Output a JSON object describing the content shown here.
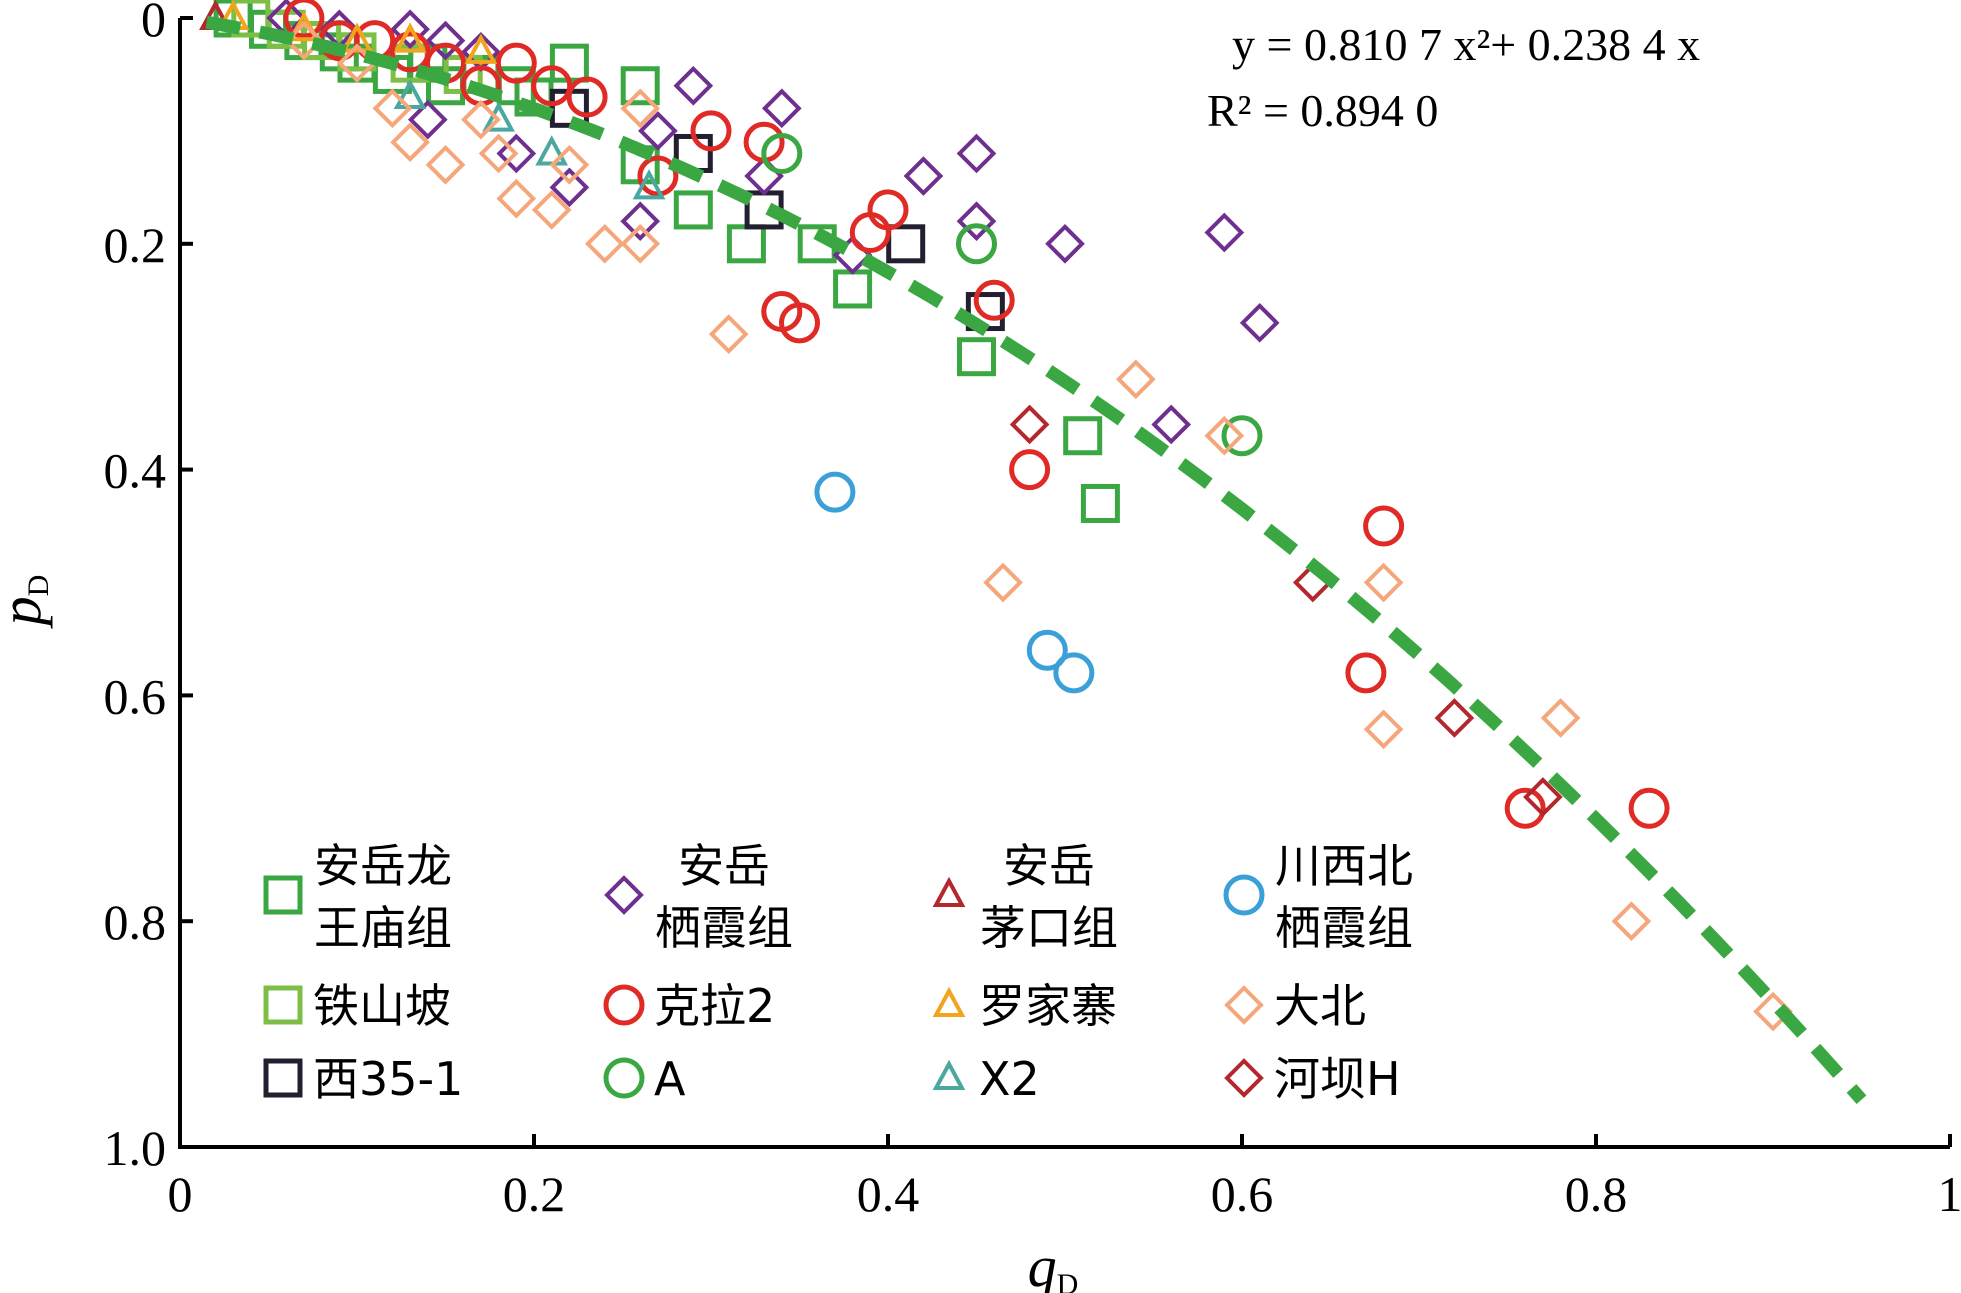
{
  "chart_data": {
    "type": "scatter",
    "xlabel": "q",
    "xlabel_sub": "D",
    "ylabel": "p",
    "ylabel_sub": "D",
    "xlim": [
      0,
      1
    ],
    "ylim": [
      0,
      1.0
    ],
    "y_inverted": true,
    "x_ticks": [
      "0",
      "0.2",
      "0.4",
      "0.6",
      "0.8",
      "1"
    ],
    "x_tick_values": [
      0,
      0.2,
      0.4,
      0.6,
      0.8,
      1
    ],
    "y_ticks": [
      "0",
      "0.2",
      "0.4",
      "0.6",
      "0.8",
      "1.0"
    ],
    "y_tick_values": [
      0,
      0.2,
      0.4,
      0.6,
      0.8,
      1.0
    ],
    "grid": false,
    "legend_position": "bottom-left",
    "annotations": {
      "equation": "y = 0.810 7 x²+ 0.238 4 x",
      "r2": "R² = 0.894 0"
    },
    "fit": {
      "a": 0.8107,
      "b": 0.2384,
      "x_range": [
        0.015,
        0.95
      ],
      "color": "#3aa743",
      "style": "dashed"
    },
    "series": [
      {
        "name": [
          "安岳龙",
          "王庙组"
        ],
        "marker": "square",
        "color": "#3aa743",
        "points": [
          [
            0.03,
            0.0
          ],
          [
            0.05,
            0.01
          ],
          [
            0.07,
            0.02
          ],
          [
            0.09,
            0.03
          ],
          [
            0.1,
            0.04
          ],
          [
            0.12,
            0.05
          ],
          [
            0.14,
            0.04
          ],
          [
            0.15,
            0.06
          ],
          [
            0.17,
            0.05
          ],
          [
            0.19,
            0.06
          ],
          [
            0.2,
            0.07
          ],
          [
            0.22,
            0.04
          ],
          [
            0.26,
            0.06
          ],
          [
            0.26,
            0.13
          ],
          [
            0.29,
            0.17
          ],
          [
            0.32,
            0.2
          ],
          [
            0.36,
            0.2
          ],
          [
            0.38,
            0.24
          ],
          [
            0.45,
            0.3
          ],
          [
            0.51,
            0.37
          ],
          [
            0.52,
            0.43
          ]
        ]
      },
      {
        "name": [
          "铁山坡"
        ],
        "marker": "square",
        "color": "#7dbe45",
        "points": [
          [
            0.04,
            0.0
          ],
          [
            0.06,
            0.01
          ],
          [
            0.08,
            0.02
          ],
          [
            0.1,
            0.03
          ],
          [
            0.13,
            0.04
          ],
          [
            0.16,
            0.05
          ]
        ]
      },
      {
        "name": [
          "西35-1"
        ],
        "marker": "square",
        "color": "#231f30",
        "points": [
          [
            0.22,
            0.08
          ],
          [
            0.29,
            0.12
          ],
          [
            0.33,
            0.17
          ],
          [
            0.41,
            0.2
          ],
          [
            0.455,
            0.26
          ]
        ]
      },
      {
        "name": [
          "安岳",
          "栖霞组"
        ],
        "marker": "diamond",
        "color": "#6f2f8f",
        "points": [
          [
            0.06,
            0.0
          ],
          [
            0.09,
            0.01
          ],
          [
            0.13,
            0.01
          ],
          [
            0.15,
            0.02
          ],
          [
            0.17,
            0.03
          ],
          [
            0.14,
            0.09
          ],
          [
            0.19,
            0.12
          ],
          [
            0.22,
            0.15
          ],
          [
            0.26,
            0.18
          ],
          [
            0.27,
            0.1
          ],
          [
            0.29,
            0.06
          ],
          [
            0.34,
            0.08
          ],
          [
            0.33,
            0.14
          ],
          [
            0.38,
            0.21
          ],
          [
            0.42,
            0.14
          ],
          [
            0.45,
            0.12
          ],
          [
            0.45,
            0.18
          ],
          [
            0.5,
            0.2
          ],
          [
            0.56,
            0.36
          ],
          [
            0.59,
            0.19
          ],
          [
            0.61,
            0.27
          ]
        ]
      },
      {
        "name": [
          "克拉2"
        ],
        "marker": "circle",
        "color": "#e02a26",
        "points": [
          [
            0.07,
            0.0
          ],
          [
            0.09,
            0.02
          ],
          [
            0.11,
            0.02
          ],
          [
            0.13,
            0.03
          ],
          [
            0.15,
            0.04
          ],
          [
            0.17,
            0.06
          ],
          [
            0.19,
            0.04
          ],
          [
            0.21,
            0.06
          ],
          [
            0.23,
            0.07
          ],
          [
            0.27,
            0.14
          ],
          [
            0.3,
            0.1
          ],
          [
            0.33,
            0.11
          ],
          [
            0.34,
            0.26
          ],
          [
            0.35,
            0.27
          ],
          [
            0.39,
            0.19
          ],
          [
            0.4,
            0.17
          ],
          [
            0.46,
            0.25
          ],
          [
            0.48,
            0.4
          ],
          [
            0.67,
            0.58
          ],
          [
            0.68,
            0.45
          ],
          [
            0.76,
            0.7
          ],
          [
            0.83,
            0.7
          ]
        ]
      },
      {
        "name": [
          "A"
        ],
        "marker": "circle",
        "color": "#3aa743",
        "points": [
          [
            0.34,
            0.12
          ],
          [
            0.45,
            0.2
          ],
          [
            0.6,
            0.37
          ]
        ]
      },
      {
        "name": [
          "安岳",
          "茅口组"
        ],
        "marker": "triangle",
        "color": "#b3272d",
        "points": [
          [
            0.02,
            0.0
          ]
        ]
      },
      {
        "name": [
          "罗家寨"
        ],
        "marker": "triangle",
        "color": "#f2a51c",
        "points": [
          [
            0.03,
            0.0
          ],
          [
            0.07,
            0.01
          ],
          [
            0.1,
            0.02
          ],
          [
            0.13,
            0.02
          ],
          [
            0.17,
            0.03
          ]
        ]
      },
      {
        "name": [
          "X2"
        ],
        "marker": "triangle",
        "color": "#4aa8a0",
        "points": [
          [
            0.13,
            0.07
          ],
          [
            0.18,
            0.09
          ],
          [
            0.21,
            0.12
          ],
          [
            0.265,
            0.15
          ]
        ]
      },
      {
        "name": [
          "川西北",
          "栖霞组"
        ],
        "marker": "circle",
        "color": "#3b9fd8",
        "points": [
          [
            0.37,
            0.42
          ],
          [
            0.49,
            0.56
          ],
          [
            0.505,
            0.58
          ]
        ]
      },
      {
        "name": [
          "大北"
        ],
        "marker": "diamond",
        "color": "#f5a77b",
        "points": [
          [
            0.07,
            0.02
          ],
          [
            0.1,
            0.04
          ],
          [
            0.12,
            0.08
          ],
          [
            0.13,
            0.11
          ],
          [
            0.15,
            0.13
          ],
          [
            0.17,
            0.09
          ],
          [
            0.18,
            0.12
          ],
          [
            0.19,
            0.16
          ],
          [
            0.21,
            0.17
          ],
          [
            0.22,
            0.13
          ],
          [
            0.24,
            0.2
          ],
          [
            0.26,
            0.2
          ],
          [
            0.26,
            0.08
          ],
          [
            0.31,
            0.28
          ],
          [
            0.465,
            0.5
          ],
          [
            0.54,
            0.32
          ],
          [
            0.59,
            0.37
          ],
          [
            0.68,
            0.5
          ],
          [
            0.68,
            0.63
          ],
          [
            0.78,
            0.62
          ],
          [
            0.82,
            0.8
          ],
          [
            0.9,
            0.88
          ]
        ]
      },
      {
        "name": [
          "河坝H"
        ],
        "marker": "diamond",
        "color": "#b3272d",
        "points": [
          [
            0.48,
            0.36
          ],
          [
            0.64,
            0.5
          ],
          [
            0.72,
            0.62
          ],
          [
            0.77,
            0.69
          ]
        ]
      }
    ]
  },
  "legend_layout": [
    {
      "series": 0,
      "col": 0,
      "row": 0
    },
    {
      "series": 3,
      "col": 1,
      "row": 0
    },
    {
      "series": 6,
      "col": 2,
      "row": 0
    },
    {
      "series": 9,
      "col": 3,
      "row": 0
    },
    {
      "series": 1,
      "col": 0,
      "row": 1
    },
    {
      "series": 4,
      "col": 1,
      "row": 1
    },
    {
      "series": 7,
      "col": 2,
      "row": 1
    },
    {
      "series": 10,
      "col": 3,
      "row": 1
    },
    {
      "series": 2,
      "col": 0,
      "row": 2
    },
    {
      "series": 5,
      "col": 1,
      "row": 2
    },
    {
      "series": 8,
      "col": 2,
      "row": 2
    },
    {
      "series": 11,
      "col": 3,
      "row": 2
    }
  ]
}
